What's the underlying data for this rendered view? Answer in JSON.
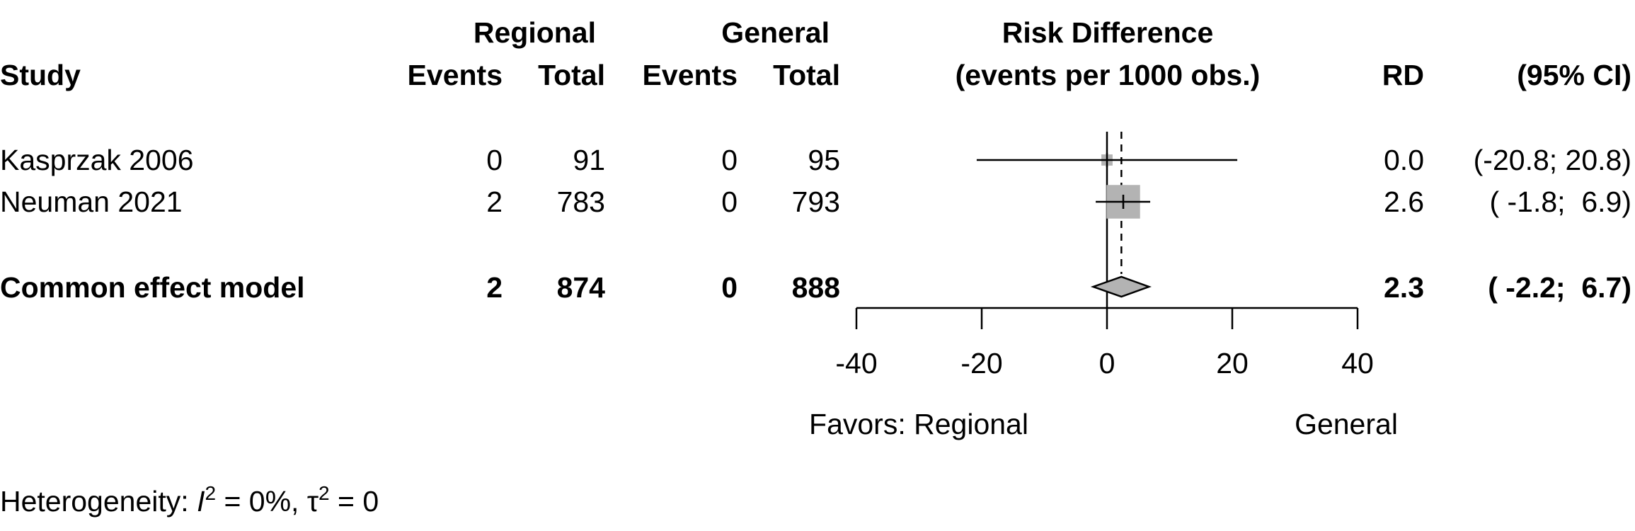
{
  "chart_data": {
    "type": "forest",
    "headers": {
      "study": "Study",
      "group1": "Regional",
      "group2": "General",
      "events": "Events",
      "total": "Total",
      "effect_title": "Risk Difference",
      "effect_subtitle": "(events per 1000 obs.)",
      "rd": "RD",
      "ci": "(95% CI)"
    },
    "studies": [
      {
        "name": "Kasprzak 2006",
        "g1_events": "0",
        "g1_total": "91",
        "g2_events": "0",
        "g2_total": "95",
        "rd": 0.0,
        "lower": -20.8,
        "upper": 20.8,
        "weight": 0.1,
        "rd_text": "0.0",
        "ci_text": "(-20.8; 20.8)"
      },
      {
        "name": "Neuman 2021",
        "g1_events": "2",
        "g1_total": "783",
        "g2_events": "0",
        "g2_total": "793",
        "rd": 2.6,
        "lower": -1.8,
        "upper": 6.9,
        "weight": 0.9,
        "rd_text": "2.6",
        "ci_text": "( -1.8;  6.9)"
      }
    ],
    "pooled": {
      "name": "Common effect model",
      "g1_events": "2",
      "g1_total": "874",
      "g2_events": "0",
      "g2_total": "888",
      "rd": 2.3,
      "lower": -2.2,
      "upper": 6.7,
      "rd_text": "2.3",
      "ci_text": "( -2.2;  6.7)"
    },
    "xlim": [
      -40,
      40
    ],
    "xticks": [
      -40,
      -20,
      0,
      20,
      40
    ],
    "null_line": 0,
    "favors_left": "Favors: Regional",
    "favors_right": "General",
    "heterogeneity": {
      "prefix": "Heterogeneity: ",
      "i2_symbol": "I",
      "i2_sup": "2",
      "i2_value": " = 0%, ",
      "tau_symbol": "τ",
      "tau_sup": "2",
      "tau_value": " = 0"
    },
    "colors": {
      "box": "#b3b3b3",
      "diamond": "#b3b3b3",
      "line": "#000000"
    }
  }
}
